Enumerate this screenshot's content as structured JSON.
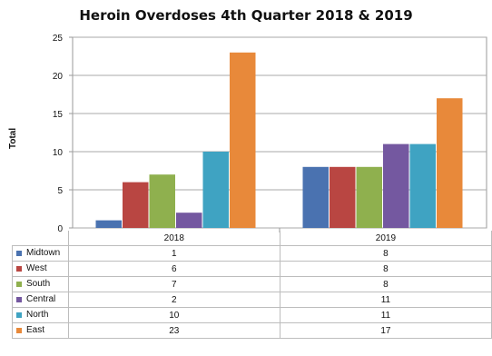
{
  "chart_data": {
    "type": "bar",
    "title": "Heroin Overdoses 4th Quarter 2018 & 2019",
    "xlabel": "",
    "ylabel": "Total",
    "ylim": [
      0,
      25
    ],
    "yticks": [
      0,
      5,
      10,
      15,
      20,
      25
    ],
    "grid": true,
    "legend": "data-table",
    "categories": [
      "2018",
      "2019"
    ],
    "series": [
      {
        "name": "Midtown",
        "color": "#4a72b0",
        "values": [
          1,
          8
        ]
      },
      {
        "name": "West",
        "color": "#b94642",
        "values": [
          6,
          8
        ]
      },
      {
        "name": "South",
        "color": "#8fb04e",
        "values": [
          7,
          8
        ]
      },
      {
        "name": "Central",
        "color": "#7458a0",
        "values": [
          2,
          11
        ]
      },
      {
        "name": "North",
        "color": "#3fa3c2",
        "values": [
          10,
          11
        ]
      },
      {
        "name": "East",
        "color": "#e8893a",
        "values": [
          23,
          17
        ]
      }
    ]
  }
}
